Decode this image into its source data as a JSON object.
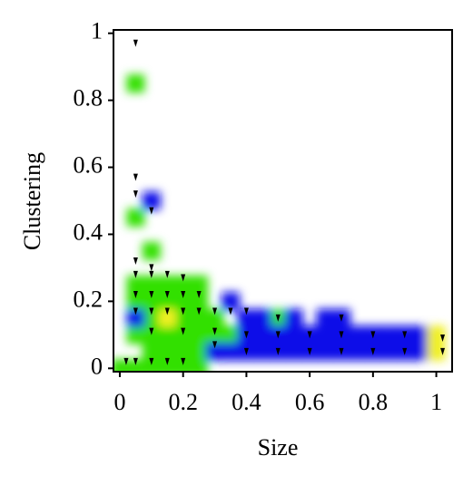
{
  "chart_data": {
    "type": "scatter",
    "x_label": "Size",
    "y_label": "Clustering",
    "xlim": [
      -0.02,
      1.05
    ],
    "ylim": [
      -0.01,
      1.01
    ],
    "xticks": [
      0,
      0.2,
      0.4,
      0.6,
      0.8,
      1
    ],
    "yticks": [
      0,
      0.2,
      0.4,
      0.6,
      0.8,
      1
    ],
    "series": [
      {
        "color": "#30e000",
        "marker": "cell",
        "x": [
          0.05,
          0.1,
          0.15,
          0.2,
          0.25,
          0.05,
          0.1,
          0.15,
          0.2,
          0.25,
          0.1,
          0.15,
          0.2,
          0.25,
          0.3,
          0.05,
          0.1,
          0.15,
          0.2,
          0.25,
          0.3,
          0.35,
          0.1,
          0.15,
          0.2,
          0.25,
          0.3,
          0,
          0.05,
          0.1,
          0.15,
          0.2,
          0.25,
          0.05,
          0.05,
          0.1,
          0.5
        ],
        "y": [
          0.25,
          0.25,
          0.25,
          0.25,
          0.25,
          0.2,
          0.2,
          0.2,
          0.2,
          0.2,
          0.15,
          0.15,
          0.15,
          0.15,
          0.15,
          0.1,
          0.1,
          0.1,
          0.1,
          0.1,
          0.1,
          0.1,
          0.05,
          0.05,
          0.05,
          0.05,
          0.05,
          0,
          0,
          0,
          0,
          0,
          0,
          0.85,
          0.45,
          0.35,
          0.15
        ]
      },
      {
        "color": "#1010e8",
        "marker": "cell",
        "x": [
          0.05,
          0.4,
          0.45,
          0.55,
          0.65,
          0.7,
          0.35,
          0.4,
          0.45,
          0.5,
          0.55,
          0.6,
          0.65,
          0.7,
          0.75,
          0.8,
          0.85,
          0.9,
          0.95,
          0.3,
          0.35,
          0.4,
          0.45,
          0.5,
          0.55,
          0.6,
          0.65,
          0.7,
          0.75,
          0.8,
          0.85,
          0.9,
          0.95,
          0.1
        ],
        "y": [
          0.15,
          0.15,
          0.15,
          0.15,
          0.15,
          0.15,
          0.2,
          0.1,
          0.1,
          0.1,
          0.1,
          0.1,
          0.1,
          0.1,
          0.1,
          0.1,
          0.1,
          0.1,
          0.1,
          0.05,
          0.05,
          0.05,
          0.05,
          0.05,
          0.05,
          0.05,
          0.05,
          0.05,
          0.05,
          0.05,
          0.05,
          0.05,
          0.05,
          0.5
        ]
      },
      {
        "color": "#f0f020",
        "marker": "cell",
        "x": [
          0.15,
          1.0,
          1.0
        ],
        "y": [
          0.15,
          0.1,
          0.05
        ]
      },
      {
        "color": "#000000",
        "marker": "arrow",
        "x": [
          0.05,
          0.05,
          0.05,
          0.1,
          0.05,
          0.1,
          0.05,
          0.1,
          0.15,
          0.2,
          0.05,
          0.1,
          0.15,
          0.2,
          0.25,
          0.05,
          0.1,
          0.15,
          0.2,
          0.25,
          0.3,
          0.35,
          0.4,
          0.5,
          0.7,
          0.1,
          0.2,
          0.3,
          0.4,
          0.5,
          0.6,
          0.7,
          0.8,
          0.9,
          1.02,
          0.3,
          0.4,
          0.5,
          0.6,
          0.7,
          0.8,
          0.9,
          1.02,
          0.02,
          0.05,
          0.1,
          0.15,
          0.2
        ],
        "y": [
          0.97,
          0.57,
          0.52,
          0.47,
          0.32,
          0.3,
          0.28,
          0.28,
          0.28,
          0.27,
          0.22,
          0.22,
          0.22,
          0.22,
          0.22,
          0.17,
          0.17,
          0.17,
          0.17,
          0.17,
          0.17,
          0.17,
          0.17,
          0.15,
          0.15,
          0.11,
          0.11,
          0.11,
          0.1,
          0.1,
          0.1,
          0.1,
          0.1,
          0.1,
          0.09,
          0.07,
          0.05,
          0.05,
          0.05,
          0.05,
          0.05,
          0.05,
          0.05,
          0.02,
          0.02,
          0.02,
          0.02,
          0.02
        ]
      }
    ]
  }
}
